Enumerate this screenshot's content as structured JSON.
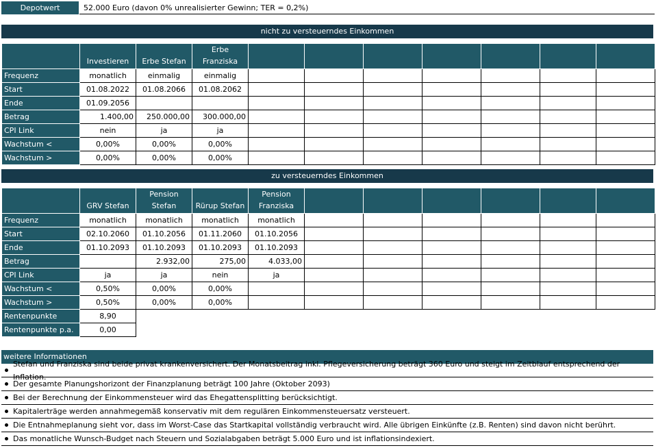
{
  "depot": {
    "label": "Depotwert",
    "value": "52.000 Euro (davon 0% unrealisierter Gewinn; TER = 0,2%)"
  },
  "section1": {
    "title": "nicht zu versteuerndes Einkommen",
    "columns": [
      "Investieren",
      "Erbe Stefan",
      "Erbe Franziska"
    ],
    "row_labels": [
      "Frequenz",
      "Start",
      "Ende",
      "Betrag",
      "CPI Link",
      "Wachstum <",
      "Wachstum >"
    ],
    "rows": [
      [
        "monatlich",
        "einmalig",
        "einmalig"
      ],
      [
        "01.08.2022",
        "01.08.2066",
        "01.08.2062"
      ],
      [
        "01.09.2056",
        "",
        ""
      ],
      [
        "1.400,00",
        "250.000,00",
        "300.000,00"
      ],
      [
        "nein",
        "ja",
        "ja"
      ],
      [
        "0,00%",
        "0,00%",
        "0,00%"
      ],
      [
        "0,00%",
        "0,00%",
        "0,00%"
      ]
    ]
  },
  "section2": {
    "title": "zu versteuerndes Einkommen",
    "columns": [
      "GRV Stefan",
      "Pension Stefan",
      "Rürup Stefan",
      "Pension Franziska"
    ],
    "row_labels": [
      "Frequenz",
      "Start",
      "Ende",
      "Betrag",
      "CPI Link",
      "Wachstum <",
      "Wachstum >"
    ],
    "rows": [
      [
        "monatlich",
        "monatlich",
        "monatlich",
        "monatlich"
      ],
      [
        "02.10.2060",
        "01.10.2056",
        "01.11.2060",
        "01.10.2056"
      ],
      [
        "01.10.2093",
        "01.10.2093",
        "01.10.2093",
        "01.10.2093"
      ],
      [
        "",
        "2.932,00",
        "275,00",
        "4.033,00"
      ],
      [
        "ja",
        "ja",
        "nein",
        "ja"
      ],
      [
        "0,50%",
        "0,00%",
        "0,00%",
        ""
      ],
      [
        "0,50%",
        "0,00%",
        "0,00%",
        ""
      ]
    ],
    "extra_rows": [
      {
        "label": "Rentenpunkte",
        "value": "8,90"
      },
      {
        "label": "Rentenpunkte p.a.",
        "value": "0,00"
      }
    ]
  },
  "info": {
    "title": "weitere Informationen",
    "items": [
      "Stefan und Franziska sind beide privat krankenversichert. Der Monatsbeitrag inkl. Pflegeversicherung beträgt 360 Euro und steigt im Zeitblauf entsprechend der Inflation.",
      "Der gesamte Planungshorizont der Finanzplanung beträgt 100 Jahre (Oktober 2093)",
      "Bei der Berechnung der Einkommensteuer wird das Ehegattensplitting berücksichtigt.",
      "Kapitalerträge werden annahmegemäß konservativ mit dem regulären Einkommensteuersatz versteuert.",
      "Die Entnahmeplanung sieht vor, dass im Worst-Case das Startkapital vollständig verbraucht wird. Alle übrigen Einkünfte (z.B. Renten) sind davon nicht berührt.",
      "Das monatliche Wunsch-Budget nach Steuern und Sozialabgaben beträgt 5.000 Euro und ist inflationsindexiert."
    ]
  }
}
